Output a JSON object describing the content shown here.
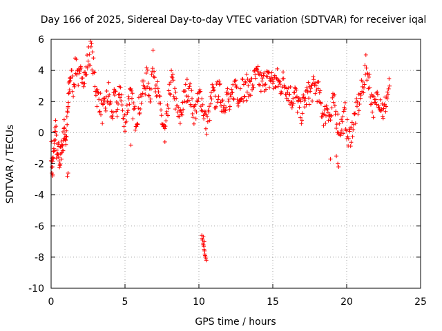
{
  "chart_data": {
    "type": "scatter",
    "title": "Day 166 of 2025, Sidereal Day-to-day VTEC variation (SDTVAR) for receiver iqal",
    "xlabel": "GPS time / hours",
    "ylabel": "SDTVAR / TECUs",
    "xlim": [
      0,
      25
    ],
    "ylim": [
      -10,
      6
    ],
    "xticks": [
      0,
      5,
      10,
      15,
      20,
      25
    ],
    "yticks": [
      -10,
      -8,
      -6,
      -4,
      -2,
      0,
      2,
      4,
      6
    ],
    "grid": true,
    "marker": "+",
    "color": "#ff0000",
    "series": [
      {
        "name": "SDTVAR",
        "anchors": [
          [
            0.0,
            -1.0
          ],
          [
            0.1,
            -2.5
          ],
          [
            0.2,
            -1.0
          ],
          [
            0.3,
            0.5
          ],
          [
            0.4,
            -1.8
          ],
          [
            0.5,
            -1.2
          ],
          [
            0.6,
            -1.9
          ],
          [
            0.7,
            -1.0
          ],
          [
            0.8,
            -0.6
          ],
          [
            0.9,
            0.3
          ],
          [
            1.0,
            -0.5
          ],
          [
            1.1,
            0.8
          ],
          [
            1.2,
            2.5
          ],
          [
            1.3,
            3.8
          ],
          [
            1.5,
            3.0
          ],
          [
            1.7,
            4.5
          ],
          [
            1.9,
            3.2
          ],
          [
            2.1,
            4.0
          ],
          [
            2.3,
            3.5
          ],
          [
            2.5,
            4.8
          ],
          [
            2.7,
            5.3
          ],
          [
            2.9,
            3.8
          ],
          [
            3.1,
            2.4
          ],
          [
            3.3,
            2.0
          ],
          [
            3.5,
            1.2
          ],
          [
            3.7,
            1.8
          ],
          [
            3.9,
            2.6
          ],
          [
            4.1,
            1.0
          ],
          [
            4.3,
            2.2
          ],
          [
            4.5,
            1.5
          ],
          [
            4.7,
            3.0
          ],
          [
            4.9,
            0.5
          ],
          [
            5.1,
            1.2
          ],
          [
            5.3,
            2.5
          ],
          [
            5.5,
            1.8
          ],
          [
            5.7,
            0.9
          ],
          [
            5.9,
            1.4
          ],
          [
            6.1,
            2.3
          ],
          [
            6.3,
            3.0
          ],
          [
            6.5,
            3.5
          ],
          [
            6.7,
            2.5
          ],
          [
            6.9,
            4.5
          ],
          [
            7.1,
            3.2
          ],
          [
            7.3,
            2.0
          ],
          [
            7.5,
            0.8
          ],
          [
            7.7,
            0.0
          ],
          [
            7.9,
            1.2
          ],
          [
            8.1,
            3.5
          ],
          [
            8.3,
            2.8
          ],
          [
            8.5,
            1.5
          ],
          [
            8.7,
            0.8
          ],
          [
            8.9,
            1.8
          ],
          [
            9.1,
            2.5
          ],
          [
            9.3,
            3.0
          ],
          [
            9.5,
            2.0
          ],
          [
            9.7,
            1.2
          ],
          [
            9.9,
            1.8
          ],
          [
            10.1,
            2.5
          ],
          [
            10.3,
            1.5
          ],
          [
            10.5,
            0.5
          ],
          [
            10.7,
            1.2
          ],
          [
            10.9,
            2.5
          ],
          [
            11.1,
            2.0
          ],
          [
            11.3,
            2.8
          ],
          [
            11.5,
            2.2
          ],
          [
            11.7,
            1.8
          ],
          [
            11.9,
            2.5
          ],
          [
            12.1,
            1.5
          ],
          [
            12.3,
            2.6
          ],
          [
            12.5,
            3.3
          ],
          [
            12.7,
            2.2
          ],
          [
            12.9,
            3.0
          ],
          [
            13.1,
            2.5
          ],
          [
            13.3,
            3.2
          ],
          [
            13.5,
            2.8
          ],
          [
            13.7,
            3.3
          ],
          [
            13.9,
            3.6
          ],
          [
            14.1,
            3.4
          ],
          [
            14.3,
            3.0
          ],
          [
            14.5,
            3.6
          ],
          [
            14.7,
            3.3
          ],
          [
            14.9,
            3.5
          ],
          [
            15.1,
            3.2
          ],
          [
            15.3,
            3.4
          ],
          [
            15.5,
            3.0
          ],
          [
            15.7,
            3.3
          ],
          [
            15.9,
            3.0
          ],
          [
            16.1,
            2.6
          ],
          [
            16.3,
            2.2
          ],
          [
            16.5,
            2.5
          ],
          [
            16.7,
            1.8
          ],
          [
            16.9,
            1.2
          ],
          [
            17.1,
            1.9
          ],
          [
            17.3,
            2.4
          ],
          [
            17.5,
            2.6
          ],
          [
            17.7,
            2.8
          ],
          [
            17.9,
            3.0
          ],
          [
            18.1,
            2.5
          ],
          [
            18.3,
            1.5
          ],
          [
            18.5,
            1.0
          ],
          [
            18.7,
            1.8
          ],
          [
            18.9,
            0.8
          ],
          [
            19.1,
            2.0
          ],
          [
            19.3,
            1.0
          ],
          [
            19.5,
            0.3
          ],
          [
            19.7,
            0.5
          ],
          [
            19.9,
            1.2
          ],
          [
            20.1,
            -0.5
          ],
          [
            20.3,
            0.0
          ],
          [
            20.5,
            0.8
          ],
          [
            20.7,
            1.5
          ],
          [
            20.9,
            2.2
          ],
          [
            21.1,
            3.0
          ],
          [
            21.3,
            4.2
          ],
          [
            21.5,
            3.5
          ],
          [
            21.7,
            2.0
          ],
          [
            21.9,
            1.5
          ],
          [
            22.1,
            2.5
          ],
          [
            22.3,
            2.0
          ],
          [
            22.5,
            1.2
          ],
          [
            22.7,
            2.2
          ],
          [
            22.9,
            3.0
          ]
        ],
        "outliers": [
          [
            10.2,
            -6.6
          ],
          [
            10.22,
            -6.8
          ],
          [
            10.25,
            -6.9
          ],
          [
            10.28,
            -7.1
          ],
          [
            10.3,
            -7.2
          ],
          [
            10.33,
            -7.3
          ],
          [
            10.35,
            -7.5
          ],
          [
            10.38,
            -7.6
          ],
          [
            10.4,
            -7.8
          ],
          [
            10.42,
            -7.9
          ],
          [
            10.45,
            -8.0
          ],
          [
            10.47,
            -8.1
          ],
          [
            10.5,
            -8.2
          ],
          [
            10.3,
            -6.7
          ],
          [
            10.36,
            -7.0
          ],
          [
            18.9,
            -1.7
          ],
          [
            19.4,
            -2.0
          ],
          [
            19.45,
            -2.2
          ],
          [
            19.3,
            -1.5
          ],
          [
            7.7,
            -0.6
          ],
          [
            5.4,
            -0.8
          ],
          [
            1.1,
            -2.8
          ],
          [
            1.15,
            -2.6
          ],
          [
            0.05,
            -2.6
          ],
          [
            0.1,
            -2.7
          ]
        ]
      }
    ]
  }
}
